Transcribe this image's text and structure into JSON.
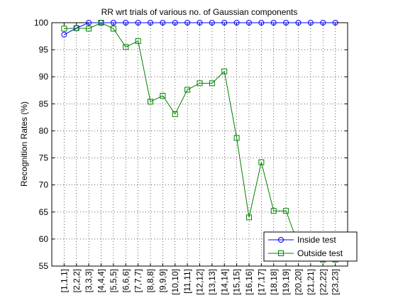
{
  "chart_data": {
    "type": "line",
    "title": "RR wrt trials of various no. of Gaussian components",
    "y_label": "Recognition Rates (%)",
    "categories": [
      "[1,1,1]",
      "[2,2,2]",
      "[3,3,3]",
      "[4,4,4]",
      "[5,5,5]",
      "[6,6,6]",
      "[7,7,7]",
      "[8,8,8]",
      "[9,9,9]",
      "[10,10]",
      "[11,11]",
      "[12,12]",
      "[13,13]",
      "[14,14]",
      "[15,15]",
      "[16,16]",
      "[17,17]",
      "[18,18]",
      "[19,19]",
      "[20,20]",
      "[21,21]",
      "[22,22]",
      "[23,23]"
    ],
    "series": [
      {
        "name": "Inside test",
        "color": "#0000ff",
        "marker": "circle",
        "values": [
          97.8,
          99,
          100,
          100,
          100,
          100,
          100,
          100,
          100,
          100,
          100,
          100,
          100,
          100,
          100,
          100,
          100,
          100,
          100,
          100,
          100,
          100,
          100
        ]
      },
      {
        "name": "Outside test",
        "color": "#008000",
        "marker": "square",
        "values": [
          98.9,
          99,
          98.9,
          100,
          98.9,
          95.5,
          96.6,
          85.4,
          86.5,
          83.1,
          87.6,
          88.8,
          88.8,
          91,
          78.7,
          64,
          74.2,
          65.2,
          65.2,
          59,
          57.3,
          56.2,
          56.2
        ]
      }
    ],
    "ylim": [
      55,
      100
    ],
    "yticks": [
      55,
      60,
      65,
      70,
      75,
      80,
      85,
      90,
      95,
      100
    ],
    "grid": true,
    "legend": "lower right"
  }
}
